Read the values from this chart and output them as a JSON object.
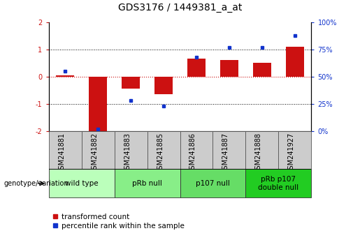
{
  "title": "GDS3176 / 1449381_a_at",
  "samples": [
    "GSM241881",
    "GSM241882",
    "GSM241883",
    "GSM241885",
    "GSM241886",
    "GSM241887",
    "GSM241888",
    "GSM241927"
  ],
  "transformed_count": [
    0.05,
    -2.0,
    -0.45,
    -0.65,
    0.65,
    0.6,
    0.5,
    1.1
  ],
  "percentile_rank": [
    55,
    2,
    28,
    23,
    68,
    77,
    77,
    88
  ],
  "ylim_left": [
    -2,
    2
  ],
  "ylim_right": [
    0,
    100
  ],
  "yticks_left": [
    -2,
    -1,
    0,
    1,
    2
  ],
  "yticks_right": [
    0,
    25,
    50,
    75,
    100
  ],
  "ytick_labels_left": [
    "-2",
    "-1",
    "0",
    "1",
    "2"
  ],
  "ytick_labels_right": [
    "0%",
    "25%",
    "50%",
    "75%",
    "100%"
  ],
  "bar_color": "#cc1111",
  "dot_color": "#1133cc",
  "genotype_groups": [
    {
      "label": "wild type",
      "start": 0,
      "end": 1,
      "color": "#bbffbb"
    },
    {
      "label": "pRb null",
      "start": 2,
      "end": 3,
      "color": "#88ee88"
    },
    {
      "label": "p107 null",
      "start": 4,
      "end": 5,
      "color": "#66dd66"
    },
    {
      "label": "pRb p107\ndouble null",
      "start": 6,
      "end": 7,
      "color": "#22cc22"
    }
  ],
  "legend_bar_label": "transformed count",
  "legend_dot_label": "percentile rank within the sample",
  "genotype_label": "genotype/variation",
  "background_color": "#ffffff",
  "sample_box_color": "#cccccc",
  "title_fontsize": 10,
  "tick_fontsize": 7,
  "sample_fontsize": 7,
  "genotype_fontsize": 7.5,
  "legend_fontsize": 7.5
}
